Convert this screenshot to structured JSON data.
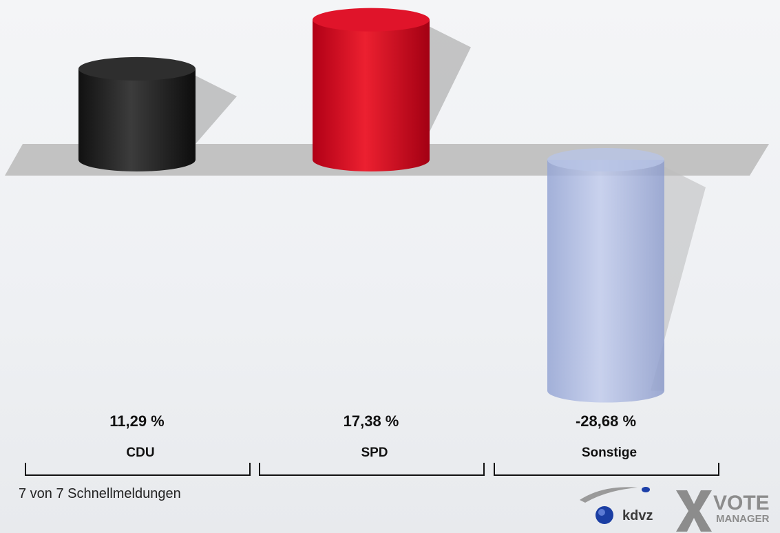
{
  "chart_data": {
    "type": "bar",
    "style": "3d-cylinder",
    "categories": [
      "CDU",
      "SPD",
      "Sonstige"
    ],
    "values": [
      11.29,
      17.38,
      -28.68
    ],
    "value_labels": [
      "11,29 %",
      "17,38 %",
      "-28,68 %"
    ],
    "colors": [
      "#262626",
      "#d4001a",
      "#a9b8e0"
    ],
    "title": "",
    "xlabel": "",
    "ylabel": "",
    "ylim": [
      -30,
      20
    ],
    "grid": false,
    "legend": "none"
  },
  "footer": {
    "note": "7 von 7 Schnellmeldungen"
  },
  "logo": {
    "brand1": "kdvz",
    "brand2_top": "VOTE",
    "brand2_bottom": "MANAGER"
  }
}
